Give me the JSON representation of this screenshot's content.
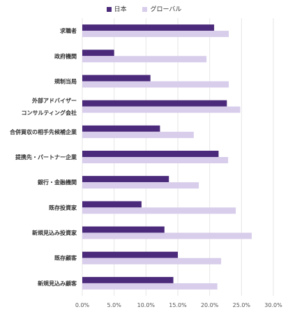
{
  "chart_data": {
    "type": "bar",
    "orientation": "horizontal",
    "categories": [
      [
        "求職者"
      ],
      [
        "政府機関"
      ],
      [
        "規制当局"
      ],
      [
        "外部アドバイザー",
        "コンサルティング会社"
      ],
      [
        "合併買収の相手先候補企業"
      ],
      [
        "提携先・パートナー企業"
      ],
      [
        "銀行・金融機関"
      ],
      [
        "既存投資家"
      ],
      [
        "新規見込み投資家"
      ],
      [
        "既存顧客"
      ],
      [
        "新規見込み顧客"
      ]
    ],
    "series": [
      {
        "name": "日本",
        "color": "#4b2a7b",
        "values": [
          0.207,
          0.05,
          0.107,
          0.227,
          0.122,
          0.214,
          0.136,
          0.093,
          0.129,
          0.15,
          0.143
        ]
      },
      {
        "name": "グローバル",
        "color": "#d8cdeb",
        "values": [
          0.23,
          0.195,
          0.23,
          0.248,
          0.175,
          0.229,
          0.183,
          0.241,
          0.266,
          0.218,
          0.212
        ]
      }
    ],
    "xlim": [
      0,
      0.3
    ],
    "x_ticks": [
      "0.0%",
      "5.0%",
      "10.0%",
      "15.0%",
      "20.0%",
      "25.0%",
      "30.0%"
    ],
    "legend_position": "top-center",
    "grid": true
  }
}
